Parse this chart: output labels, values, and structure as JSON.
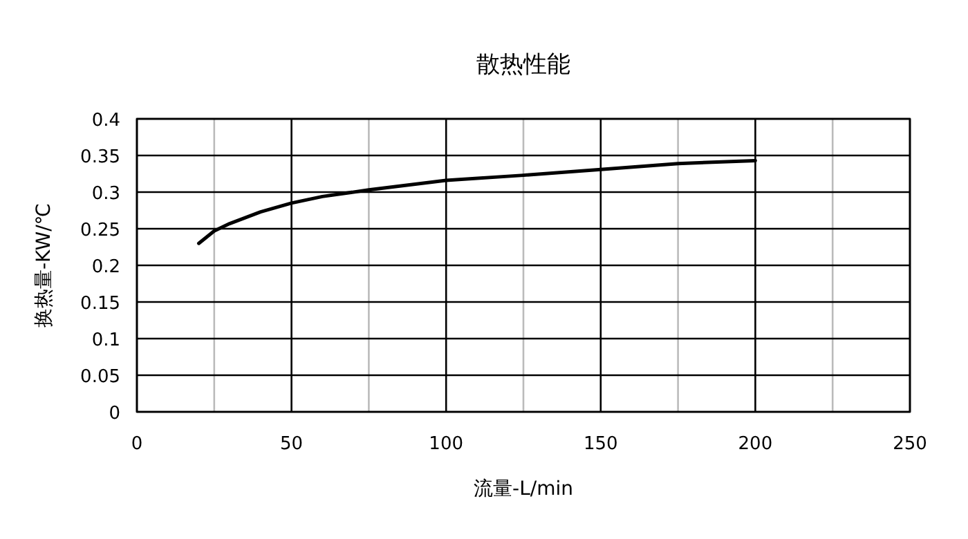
{
  "chart_data": {
    "type": "line",
    "title": "散热性能",
    "xlabel": "流量-L/min",
    "ylabel": "换热量-KW/℃",
    "x": [
      20,
      25,
      30,
      35,
      40,
      50,
      60,
      75,
      100,
      125,
      150,
      175,
      200
    ],
    "series": [
      {
        "color": "#000000",
        "values": [
          0.23,
          0.247,
          0.257,
          0.265,
          0.273,
          0.285,
          0.294,
          0.303,
          0.316,
          0.323,
          0.331,
          0.339,
          0.343
        ]
      }
    ],
    "xlim": [
      0,
      250
    ],
    "xticks": [
      0,
      {
        "value": 25,
        "label": null
      },
      50,
      {
        "value": 75,
        "label": null
      },
      100,
      {
        "value": 125,
        "label": null
      },
      150,
      {
        "value": 175,
        "label": null
      },
      200,
      {
        "value": 225,
        "label": null
      },
      250
    ],
    "ylim": [
      0,
      0.4
    ],
    "yticks": [
      0,
      0.05,
      0.1,
      0.15,
      0.2,
      0.25,
      0.3,
      0.35,
      0.4
    ],
    "grid": true,
    "marker": "none",
    "line_style": "solid"
  }
}
